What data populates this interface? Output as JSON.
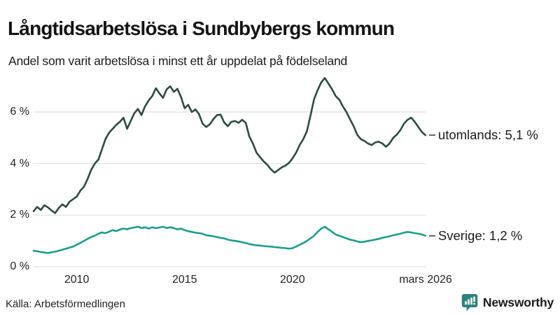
{
  "header": {
    "title": "Långtidsarbetslösa i Sundbybergs kommun",
    "subtitle": "Andel som varit arbetslösa i minst ett år uppdelat på födelseland"
  },
  "footer": {
    "source": "Källa: Arbetsförmedlingen",
    "brand": "Newsworthy",
    "brand_color": "#2e7f7e"
  },
  "chart_data": {
    "type": "line",
    "title": "Långtidsarbetslösa i Sundbybergs kommun",
    "subtitle": "Andel som varit arbetslösa i minst ett år uppdelat på födelseland",
    "unit": "%",
    "grid": true,
    "legend_position": "end-of-line-labels",
    "x_range": [
      2008,
      2026.17
    ],
    "y_range": [
      0,
      7.6
    ],
    "y_ticks": [
      {
        "value": 0,
        "label": "0 %"
      },
      {
        "value": 2,
        "label": "2 %"
      },
      {
        "value": 4,
        "label": "4 %"
      },
      {
        "value": 6,
        "label": "6 %"
      }
    ],
    "x_ticks": [
      {
        "value": 2010,
        "label": "2010"
      },
      {
        "value": 2015,
        "label": "2015"
      },
      {
        "value": 2020,
        "label": "2020"
      },
      {
        "value": 2026.17,
        "label": "mars 2026"
      }
    ],
    "series": [
      {
        "name": "utomlands",
        "label": "utomlands: 5,1 %",
        "last_value_label": "5,1 %",
        "color": "#2b4b43",
        "x_start": 2008.0,
        "x_step": 0.16667,
        "values": [
          2.15,
          2.32,
          2.2,
          2.38,
          2.3,
          2.18,
          2.08,
          2.28,
          2.42,
          2.32,
          2.52,
          2.62,
          2.72,
          2.95,
          3.1,
          3.4,
          3.75,
          4.0,
          4.15,
          4.55,
          4.95,
          5.2,
          5.35,
          5.5,
          5.62,
          5.78,
          5.35,
          5.65,
          5.95,
          6.12,
          5.88,
          6.22,
          6.45,
          6.62,
          6.92,
          6.72,
          6.55,
          6.88,
          7.0,
          6.78,
          6.9,
          6.58,
          6.15,
          6.28,
          6.0,
          6.1,
          5.92,
          5.55,
          5.42,
          5.52,
          5.72,
          5.88,
          5.9,
          5.6,
          5.45,
          5.62,
          5.65,
          5.58,
          5.7,
          5.58,
          5.05,
          4.78,
          4.42,
          4.25,
          4.08,
          3.95,
          3.78,
          3.65,
          3.75,
          3.85,
          3.92,
          4.02,
          4.2,
          4.42,
          4.72,
          4.95,
          5.25,
          5.85,
          6.5,
          6.85,
          7.15,
          7.32,
          7.1,
          6.88,
          6.62,
          6.48,
          6.22,
          6.0,
          5.72,
          5.45,
          5.12,
          4.95,
          4.88,
          4.78,
          4.72,
          4.82,
          4.85,
          4.78,
          4.65,
          4.78,
          5.0,
          5.12,
          5.3,
          5.55,
          5.7,
          5.78,
          5.62,
          5.42,
          5.22,
          5.1
        ]
      },
      {
        "name": "sverige",
        "label": "Sverige: 1,2 %",
        "last_value_label": "1,2 %",
        "color": "#1a9e8c",
        "x_start": 2008.0,
        "x_step": 0.16667,
        "values": [
          0.62,
          0.6,
          0.57,
          0.55,
          0.53,
          0.56,
          0.58,
          0.62,
          0.66,
          0.7,
          0.74,
          0.78,
          0.85,
          0.92,
          1.0,
          1.08,
          1.15,
          1.2,
          1.28,
          1.33,
          1.3,
          1.36,
          1.42,
          1.38,
          1.44,
          1.48,
          1.45,
          1.5,
          1.52,
          1.55,
          1.5,
          1.53,
          1.48,
          1.53,
          1.5,
          1.52,
          1.55,
          1.5,
          1.53,
          1.5,
          1.45,
          1.48,
          1.42,
          1.38,
          1.35,
          1.32,
          1.3,
          1.28,
          1.22,
          1.2,
          1.18,
          1.15,
          1.12,
          1.1,
          1.05,
          1.02,
          1.0,
          0.98,
          0.95,
          0.92,
          0.88,
          0.85,
          0.83,
          0.82,
          0.8,
          0.79,
          0.78,
          0.76,
          0.75,
          0.73,
          0.72,
          0.7,
          0.72,
          0.78,
          0.85,
          0.92,
          1.0,
          1.1,
          1.2,
          1.35,
          1.48,
          1.55,
          1.45,
          1.35,
          1.25,
          1.2,
          1.15,
          1.1,
          1.05,
          1.02,
          0.98,
          0.95,
          0.97,
          1.0,
          1.02,
          1.05,
          1.08,
          1.12,
          1.15,
          1.18,
          1.22,
          1.25,
          1.28,
          1.32,
          1.35,
          1.33,
          1.3,
          1.28,
          1.25,
          1.2
        ]
      }
    ]
  }
}
